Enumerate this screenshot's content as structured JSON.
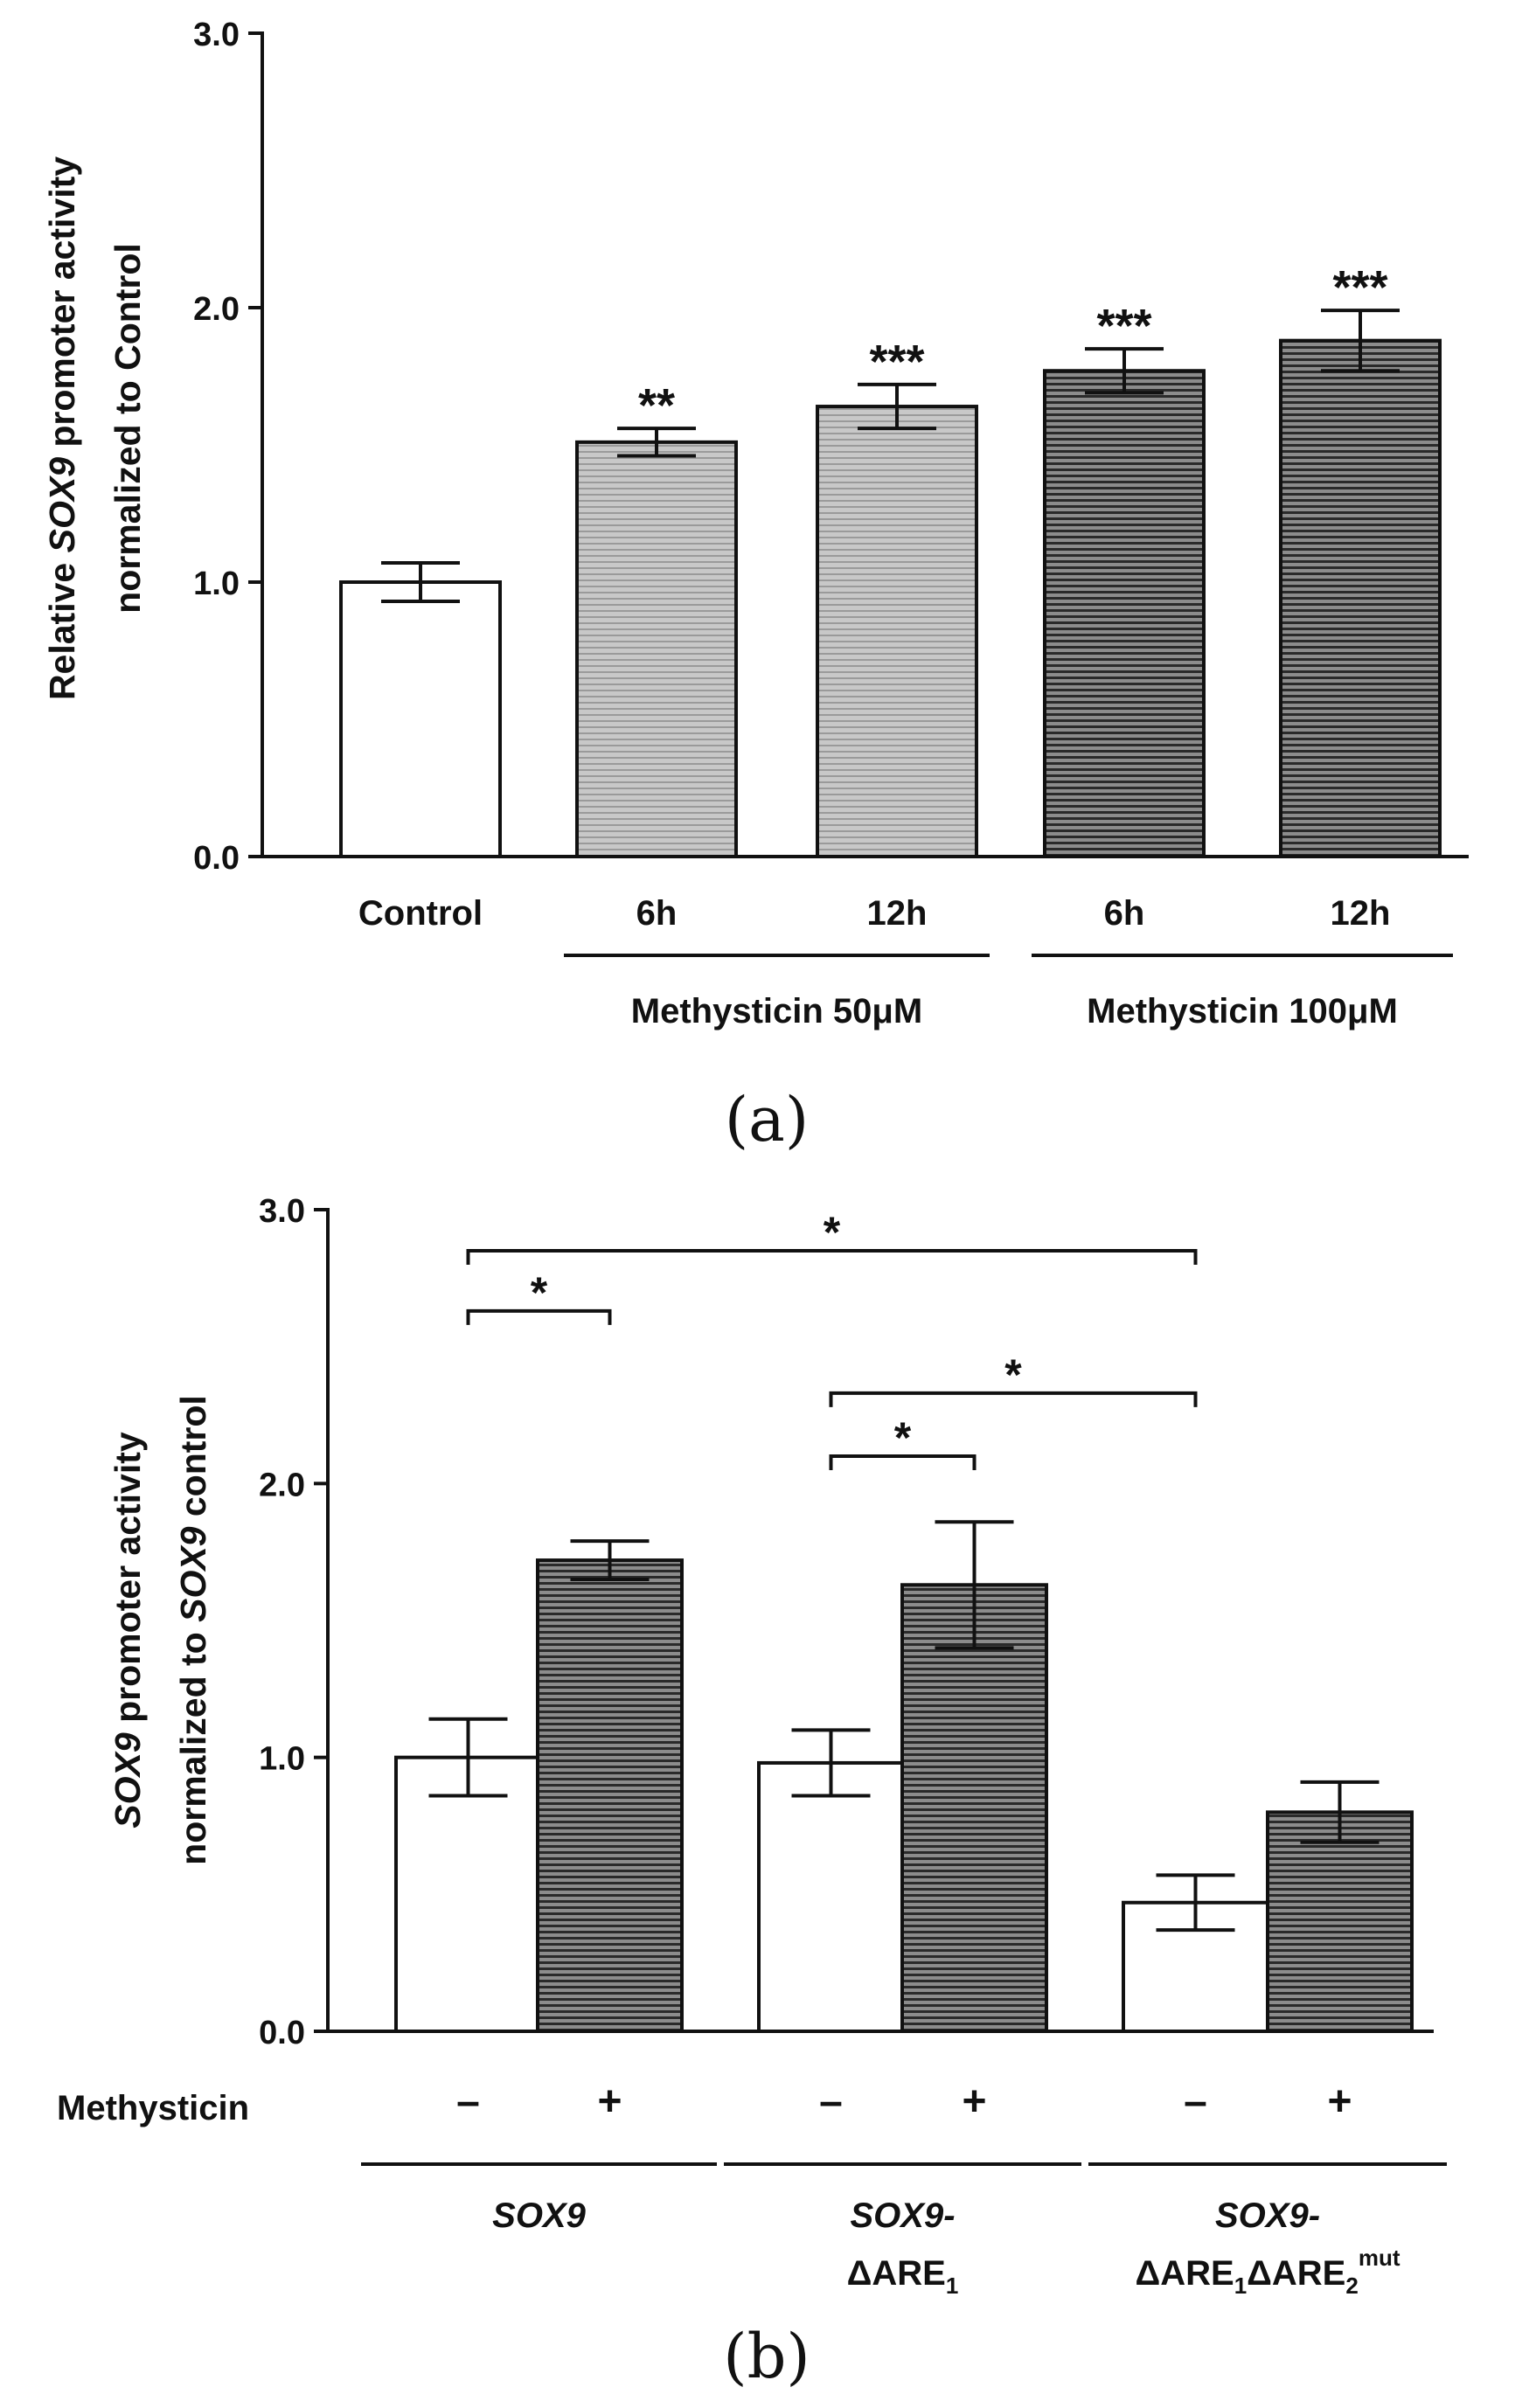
{
  "colors": {
    "axis": "#111111",
    "white_fill": "#ffffff",
    "light_fill": "#c8c8c8",
    "light_line": "#9a9a9a",
    "dark_fill": "#8c8c8c",
    "dark_line": "#2a2a2a"
  },
  "chart_data": [
    {
      "panel_label": "(a)",
      "type": "bar",
      "ylabel": {
        "prefix": "Relative ",
        "gene": "SOX9",
        "suffix": " promoter activity",
        "line2": "normalized to Control"
      },
      "ylim": [
        0,
        3
      ],
      "yticks": [
        "0.0",
        "1.0",
        "2.0",
        "3.0"
      ],
      "categories": [
        "Control",
        "6h",
        "12h",
        "6h",
        "12h"
      ],
      "values": [
        1.0,
        1.51,
        1.64,
        1.77,
        1.88
      ],
      "errors": [
        0.07,
        0.05,
        0.08,
        0.08,
        0.11
      ],
      "fills": [
        "white",
        "light",
        "light",
        "dark",
        "dark"
      ],
      "significance": [
        "",
        "**",
        "***",
        "***",
        "***"
      ],
      "groups": [
        {
          "label": "Methysticin 50μM",
          "bars": [
            1,
            2
          ]
        },
        {
          "label": "Methysticin 100μM",
          "bars": [
            3,
            4
          ]
        }
      ]
    },
    {
      "panel_label": "(b)",
      "type": "bar",
      "ylabel": {
        "gene": "SOX9",
        "suffix": " promoter activity",
        "line2_prefix": "normalized to ",
        "line2_suffix": " control"
      },
      "ylim": [
        0,
        3
      ],
      "yticks": [
        "0.0",
        "1.0",
        "2.0",
        "3.0"
      ],
      "treatment_label": "Methysticin",
      "treatment": [
        "–",
        "+",
        "–",
        "+",
        "–",
        "+"
      ],
      "values": [
        1.0,
        1.72,
        0.98,
        1.63,
        0.47,
        0.8
      ],
      "errors": [
        0.14,
        0.07,
        0.12,
        0.23,
        0.1,
        0.11
      ],
      "fills": [
        "white",
        "dark",
        "white",
        "dark",
        "white",
        "dark"
      ],
      "constructs": [
        {
          "line1": "SOX9",
          "bars": [
            0,
            1
          ]
        },
        {
          "line1": "SOX9-",
          "line2": "ΔARE",
          "line2_sub": "1",
          "bars": [
            2,
            3
          ]
        },
        {
          "line1": "SOX9-",
          "line2": "ΔARE",
          "line2_sub": "1",
          "line2_b": "ΔARE",
          "line2_b_sub": "2",
          "line2_sup": "mut",
          "bars": [
            4,
            5
          ]
        }
      ],
      "brackets": [
        {
          "from": 0,
          "to": 1,
          "y": 2.63,
          "label": "*"
        },
        {
          "from": 0,
          "to": 4,
          "y": 2.85,
          "label": "*"
        },
        {
          "from": 2,
          "to": 4,
          "y": 2.33,
          "label": "*"
        },
        {
          "from": 2,
          "to": 3,
          "y": 2.1,
          "label": "*"
        }
      ]
    }
  ]
}
